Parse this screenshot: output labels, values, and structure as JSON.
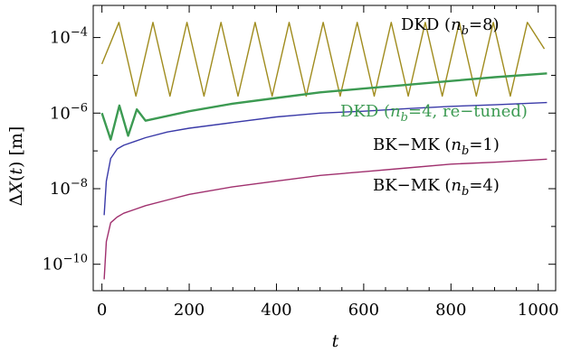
{
  "chart_data": {
    "type": "line",
    "title": "",
    "xlabel": "t",
    "ylabel": "ΔX(t) [m]",
    "xlim": [
      -20,
      1040
    ],
    "ylim_log10": [
      -10.7,
      -3.15
    ],
    "y_scale": "log",
    "grid": false,
    "x_ticks": [
      0,
      200,
      400,
      600,
      800,
      1000
    ],
    "x_tick_labels": [
      "0",
      "200",
      "400",
      "600",
      "800",
      "1000"
    ],
    "y_ticks_log10": [
      -10,
      -8,
      -6,
      -4
    ],
    "y_tick_labels": [
      {
        "base": "10",
        "exp": "−10"
      },
      {
        "base": "10",
        "exp": "−8"
      },
      {
        "base": "10",
        "exp": "−6"
      },
      {
        "base": "10",
        "exp": "−4"
      }
    ],
    "series": [
      {
        "name": "DKD (nb=8)",
        "label_parts": {
          "pre": "DKD (",
          "var": "n",
          "sub": "b",
          "post": "=8)"
        },
        "color": "#a08c1e",
        "x": [
          0,
          39,
          78,
          117,
          156,
          195,
          234,
          273,
          312,
          351,
          390,
          429,
          468,
          507,
          546,
          585,
          624,
          663,
          702,
          741,
          780,
          819,
          858,
          897,
          936,
          975,
          1014
        ],
        "y_log10": [
          -4.7,
          -3.6,
          -5.55,
          -3.6,
          -5.55,
          -3.6,
          -5.55,
          -3.6,
          -5.55,
          -3.6,
          -5.55,
          -3.6,
          -5.55,
          -3.6,
          -5.55,
          -3.6,
          -5.55,
          -3.6,
          -5.55,
          -3.6,
          -5.55,
          -3.6,
          -5.55,
          -3.6,
          -5.55,
          -3.6,
          -4.3
        ]
      },
      {
        "name": "DKD (nb=4, re-tuned)",
        "label_parts": {
          "pre": "DKD (",
          "var": "n",
          "sub": "b",
          "post": "=4, re−tuned)"
        },
        "color": "#3c9a52",
        "x": [
          0,
          20,
          40,
          60,
          80,
          100,
          200,
          300,
          400,
          500,
          600,
          700,
          800,
          900,
          1020
        ],
        "y_log10": [
          -6.0,
          -6.7,
          -5.8,
          -6.6,
          -5.9,
          -6.2,
          -5.95,
          -5.75,
          -5.6,
          -5.45,
          -5.35,
          -5.25,
          -5.15,
          -5.05,
          -4.95
        ]
      },
      {
        "name": "BK−MK (nb=1)",
        "label_parts": {
          "pre": "BK−MK (",
          "var": "n",
          "sub": "b",
          "post": "=1)"
        },
        "color": "#3a3aa8",
        "x": [
          5,
          10,
          20,
          35,
          50,
          75,
          100,
          150,
          200,
          300,
          400,
          500,
          600,
          700,
          800,
          900,
          1020
        ],
        "y_log10": [
          -8.7,
          -7.8,
          -7.2,
          -6.95,
          -6.85,
          -6.75,
          -6.65,
          -6.5,
          -6.4,
          -6.25,
          -6.1,
          -6.0,
          -5.95,
          -5.88,
          -5.82,
          -5.78,
          -5.72
        ]
      },
      {
        "name": "BK−MK (nb=4)",
        "label_parts": {
          "pre": "BK−MK (",
          "var": "n",
          "sub": "b",
          "post": "=4)"
        },
        "color": "#a0306e",
        "x": [
          5,
          10,
          20,
          35,
          50,
          75,
          100,
          150,
          200,
          300,
          400,
          500,
          600,
          700,
          800,
          900,
          1020
        ],
        "y_log10": [
          -10.4,
          -9.4,
          -8.9,
          -8.75,
          -8.65,
          -8.55,
          -8.45,
          -8.3,
          -8.15,
          -7.95,
          -7.8,
          -7.65,
          -7.55,
          -7.45,
          -7.35,
          -7.3,
          -7.22
        ]
      }
    ]
  }
}
